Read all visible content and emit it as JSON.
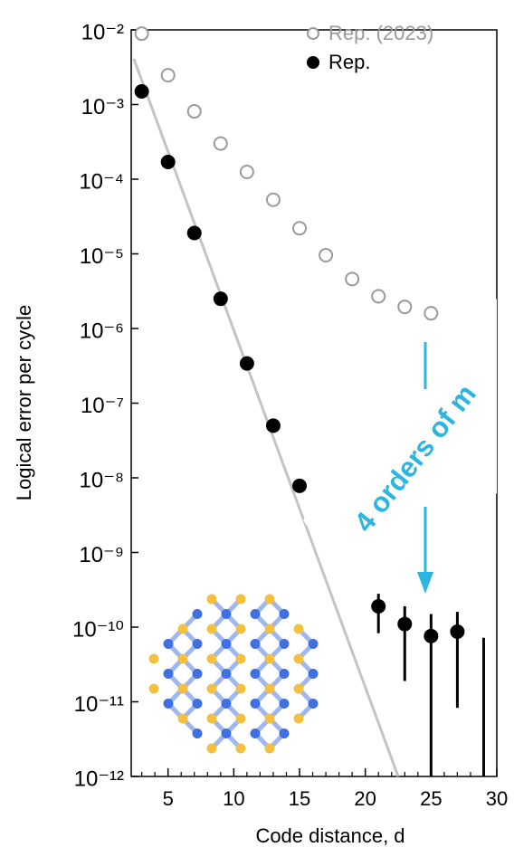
{
  "chart_data": {
    "type": "scatter",
    "xlabel": "Code distance, d",
    "ylabel": "Logical error per cycle",
    "xlim": [
      2.2,
      30
    ],
    "xticks": [
      5,
      10,
      15,
      20,
      25,
      30
    ],
    "xminorticks": [
      3,
      4,
      6,
      7,
      8,
      9,
      11,
      12,
      13,
      14,
      16,
      17,
      18,
      19,
      21,
      22,
      23,
      24,
      26,
      27,
      28,
      29
    ],
    "ylim": [
      1e-12,
      0.01
    ],
    "yscale": "log",
    "yticks": [
      {
        "value": 0.01,
        "label": "10⁻²"
      },
      {
        "value": 0.001,
        "label": "10⁻³"
      },
      {
        "value": 0.0001,
        "label": "10⁻⁴"
      },
      {
        "value": 1e-05,
        "label": "10⁻⁵"
      },
      {
        "value": 1e-06,
        "label": "10⁻⁶"
      },
      {
        "value": 1e-07,
        "label": "10⁻⁷"
      },
      {
        "value": 1e-08,
        "label": "10⁻⁸"
      },
      {
        "value": 1e-09,
        "label": "10⁻⁹"
      },
      {
        "value": 1e-10,
        "label": "10⁻¹⁰"
      },
      {
        "value": 1e-11,
        "label": "10⁻¹¹"
      },
      {
        "value": 1e-12,
        "label": "10⁻¹²"
      }
    ],
    "legend": "upper right",
    "series": [
      {
        "name": "Rep. (2023)",
        "color": "#9a9a9a",
        "marker": "open",
        "x": [
          3,
          5,
          7,
          9,
          11,
          13,
          15,
          17,
          19,
          21,
          23,
          25
        ],
        "values": [
          0.0089,
          0.00247,
          0.00081,
          0.0003,
          0.000125,
          5.3e-05,
          2.2e-05,
          9.6e-06,
          4.6e-06,
          2.7e-06,
          1.95e-06,
          1.6e-06
        ]
      },
      {
        "name": "Rep.",
        "color": "#000000",
        "marker": "filled",
        "x": [
          3,
          5,
          7,
          9,
          11,
          13,
          15,
          21,
          23,
          25,
          27,
          29
        ],
        "values": [
          0.0015,
          0.00017,
          1.9e-05,
          2.5e-06,
          3.4e-07,
          5e-08,
          7.8e-09,
          1.9e-10,
          1.1e-10,
          7.6e-11,
          8.7e-11,
          null
        ],
        "error_high": [
          null,
          null,
          null,
          null,
          null,
          null,
          null,
          2.8e-10,
          1.9e-10,
          1.5e-10,
          1.6e-10,
          7.2e-11
        ],
        "error_low": [
          null,
          null,
          null,
          null,
          null,
          null,
          null,
          8.3e-11,
          1.9e-11,
          1e-12,
          8.3e-12,
          1e-12
        ]
      }
    ],
    "fit_line": {
      "color": "#c4c4c8",
      "x": [
        2.4,
        22.5
      ],
      "values": [
        0.0041,
        1e-12
      ]
    },
    "annotation": {
      "text": "4 orders of m",
      "color": "#2bb5e0"
    }
  }
}
